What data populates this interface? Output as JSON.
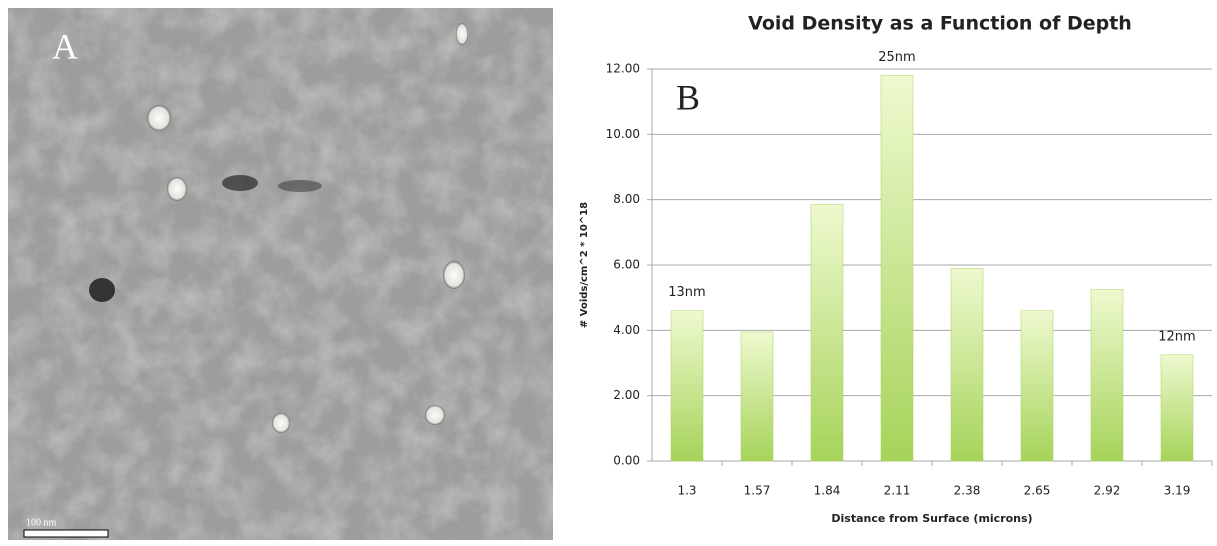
{
  "figure": {
    "image_label": "A",
    "chart_label": "B",
    "scale_bar": "100 nm"
  },
  "chart_data": {
    "type": "bar",
    "title": "Void Density as a Function of Depth",
    "x_label": "Distance from Surface (microns)",
    "y_label": "# Voids/cm^2 * 10^18",
    "categories": [
      "1.3",
      "1.57",
      "1.84",
      "2.11",
      "2.38",
      "2.65",
      "2.92",
      "3.19"
    ],
    "values": [
      4.6,
      3.95,
      7.85,
      11.8,
      5.9,
      4.6,
      5.25,
      3.25
    ],
    "color": "#a6d35a",
    "ylim": [
      0,
      12
    ],
    "yticks": [
      {
        "value": 0,
        "label": "0.00"
      },
      {
        "value": 2,
        "label": "2.00"
      },
      {
        "value": 4,
        "label": "4.00"
      },
      {
        "value": 6,
        "label": "6.00"
      },
      {
        "value": 8,
        "label": "8.00"
      },
      {
        "value": 10,
        "label": "10.00"
      },
      {
        "value": 12,
        "label": "12.00"
      }
    ],
    "grid": true,
    "annotations": [
      {
        "text": "13nm",
        "category": "1.3"
      },
      {
        "text": "25nm",
        "category": "2.11"
      },
      {
        "text": "12nm",
        "category": "3.19"
      }
    ]
  }
}
